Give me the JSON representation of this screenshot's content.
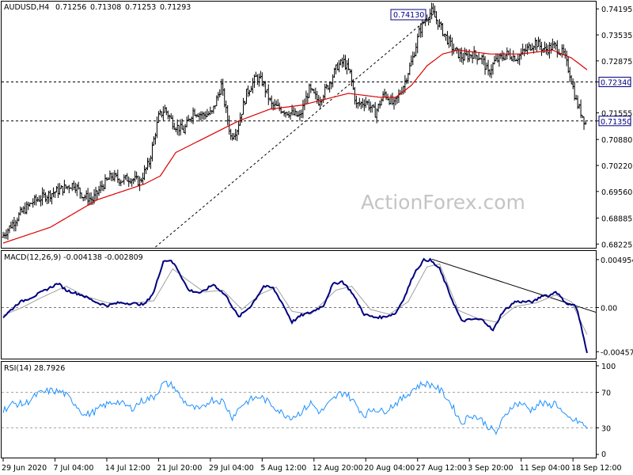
{
  "watermark": "ActionForex.com",
  "chart_data": [
    {
      "type": "ohlc",
      "title": "AUDUSD,H4",
      "ohlc_header": [
        "0.71256",
        "0.71308",
        "0.71253",
        "0.71293"
      ],
      "y_ticks": [
        "0.74195",
        "0.73535",
        "0.72875",
        "0.72340",
        "0.71555",
        "0.71350",
        "0.70880",
        "0.70220",
        "0.69560",
        "0.68885",
        "0.68225"
      ],
      "ylim": [
        0.6815,
        0.7434
      ],
      "x_tick_labels": [
        "29 Jun 2020",
        "7 Jul 04:00",
        "14 Jul 12:00",
        "21 Jul 20:00",
        "29 Jul 04:00",
        "5 Aug 12:00",
        "12 Aug 20:00",
        "20 Aug 04:00",
        "27 Aug 12:00",
        "3 Sep 20:00",
        "11 Sep 04:00",
        "18 Sep 12:00"
      ],
      "x_tick_index": [
        0,
        33,
        66,
        99,
        132,
        165,
        198,
        231,
        264,
        297,
        330,
        363
      ],
      "bar_count": 372,
      "close_anchors": [
        [
          0,
          0.684
        ],
        [
          4,
          0.686
        ],
        [
          12,
          0.69
        ],
        [
          20,
          0.693
        ],
        [
          28,
          0.6945
        ],
        [
          34,
          0.6955
        ],
        [
          40,
          0.6965
        ],
        [
          46,
          0.6975
        ],
        [
          52,
          0.6945
        ],
        [
          58,
          0.6935
        ],
        [
          64,
          0.697
        ],
        [
          70,
          0.6995
        ],
        [
          76,
          0.6985
        ],
        [
          82,
          0.699
        ],
        [
          88,
          0.698
        ],
        [
          94,
          0.703
        ],
        [
          100,
          0.7145
        ],
        [
          104,
          0.7165
        ],
        [
          110,
          0.7125
        ],
        [
          116,
          0.711
        ],
        [
          122,
          0.716
        ],
        [
          128,
          0.715
        ],
        [
          134,
          0.7155
        ],
        [
          140,
          0.7225
        ],
        [
          146,
          0.7095
        ],
        [
          150,
          0.7115
        ],
        [
          156,
          0.7205
        ],
        [
          162,
          0.7245
        ],
        [
          166,
          0.7235
        ],
        [
          172,
          0.7175
        ],
        [
          178,
          0.7165
        ],
        [
          184,
          0.7155
        ],
        [
          190,
          0.7145
        ],
        [
          196,
          0.7215
        ],
        [
          202,
          0.7185
        ],
        [
          208,
          0.7225
        ],
        [
          214,
          0.7275
        ],
        [
          218,
          0.7285
        ],
        [
          222,
          0.7255
        ],
        [
          226,
          0.7175
        ],
        [
          232,
          0.7185
        ],
        [
          238,
          0.7155
        ],
        [
          244,
          0.7205
        ],
        [
          250,
          0.7175
        ],
        [
          256,
          0.7225
        ],
        [
          262,
          0.7295
        ],
        [
          266,
          0.736
        ],
        [
          270,
          0.7395
        ],
        [
          274,
          0.7412
        ],
        [
          278,
          0.7385
        ],
        [
          282,
          0.7355
        ],
        [
          288,
          0.7315
        ],
        [
          294,
          0.7295
        ],
        [
          300,
          0.7305
        ],
        [
          306,
          0.7295
        ],
        [
          310,
          0.7255
        ],
        [
          314,
          0.7285
        ],
        [
          318,
          0.7295
        ],
        [
          322,
          0.7305
        ],
        [
          328,
          0.7295
        ],
        [
          334,
          0.7315
        ],
        [
          340,
          0.7335
        ],
        [
          346,
          0.7315
        ],
        [
          352,
          0.7325
        ],
        [
          358,
          0.7305
        ],
        [
          362,
          0.7255
        ],
        [
          366,
          0.7185
        ],
        [
          372,
          0.7129
        ]
      ],
      "moving_average": {
        "color": "#dd0000",
        "anchors": [
          [
            0,
            0.6825
          ],
          [
            30,
            0.6865
          ],
          [
            60,
            0.6935
          ],
          [
            90,
            0.6975
          ],
          [
            100,
            0.6995
          ],
          [
            110,
            0.7055
          ],
          [
            130,
            0.7095
          ],
          [
            150,
            0.7135
          ],
          [
            170,
            0.7165
          ],
          [
            190,
            0.7175
          ],
          [
            200,
            0.7185
          ],
          [
            210,
            0.7195
          ],
          [
            220,
            0.7205
          ],
          [
            240,
            0.7195
          ],
          [
            250,
            0.7195
          ],
          [
            260,
            0.7225
          ],
          [
            270,
            0.7275
          ],
          [
            280,
            0.7305
          ],
          [
            290,
            0.7315
          ],
          [
            310,
            0.7305
          ],
          [
            330,
            0.7305
          ],
          [
            350,
            0.7315
          ],
          [
            362,
            0.7295
          ],
          [
            372,
            0.7265
          ]
        ]
      },
      "horizontal_levels": [
        {
          "value": 0.7234,
          "label": "0.72340"
        },
        {
          "value": 0.7135,
          "label": "0.71350"
        }
      ],
      "trendline": {
        "from": [
          97,
          0.6815
        ],
        "to": [
          276,
          0.7413
        ]
      },
      "annotations": [
        {
          "text": "0.74130",
          "x": 276,
          "y": 0.7413
        }
      ]
    },
    {
      "type": "line",
      "title": "MACD(12,26,9) -0.004138 -0.002809",
      "y_ticks": [
        "0.004954",
        "0.00",
        "-0.004571"
      ],
      "ylim": [
        -0.0052,
        0.0056
      ],
      "macd_anchors": [
        [
          0,
          -0.001
        ],
        [
          10,
          0.0005
        ],
        [
          20,
          0.0012
        ],
        [
          35,
          0.0025
        ],
        [
          40,
          0.0018
        ],
        [
          50,
          0.0013
        ],
        [
          60,
          0.0005
        ],
        [
          66,
          0.0002
        ],
        [
          74,
          0.0005
        ],
        [
          84,
          0.0004
        ],
        [
          90,
          0.0003
        ],
        [
          96,
          0.0016
        ],
        [
          102,
          0.0048
        ],
        [
          106,
          0.0049
        ],
        [
          110,
          0.0043
        ],
        [
          118,
          0.0018
        ],
        [
          126,
          0.0015
        ],
        [
          134,
          0.0024
        ],
        [
          142,
          0.0012
        ],
        [
          150,
          -0.001
        ],
        [
          158,
          0.0002
        ],
        [
          166,
          0.0022
        ],
        [
          172,
          0.002
        ],
        [
          178,
          0.0004
        ],
        [
          184,
          -0.0015
        ],
        [
          190,
          -0.0008
        ],
        [
          196,
          -0.0005
        ],
        [
          204,
          0.0002
        ],
        [
          210,
          0.0024
        ],
        [
          216,
          0.0027
        ],
        [
          222,
          0.0016
        ],
        [
          230,
          -0.0007
        ],
        [
          236,
          -0.001
        ],
        [
          242,
          -0.001
        ],
        [
          250,
          -0.0006
        ],
        [
          256,
          0.0012
        ],
        [
          262,
          0.0036
        ],
        [
          268,
          0.0049
        ],
        [
          272,
          0.0049
        ],
        [
          278,
          0.004
        ],
        [
          286,
          0.0008
        ],
        [
          292,
          -0.0014
        ],
        [
          300,
          -0.0012
        ],
        [
          306,
          -0.0013
        ],
        [
          312,
          -0.0024
        ],
        [
          318,
          -0.0005
        ],
        [
          326,
          0.0006
        ],
        [
          332,
          0.0006
        ],
        [
          338,
          0.0006
        ],
        [
          344,
          0.0013
        ],
        [
          348,
          0.0012
        ],
        [
          352,
          0.0017
        ],
        [
          356,
          0.0009
        ],
        [
          360,
          0.0003
        ],
        [
          364,
          0.0003
        ],
        [
          366,
          -0.0005
        ],
        [
          372,
          -0.0046
        ]
      ],
      "signal_anchors": [
        [
          0,
          -0.0008
        ],
        [
          12,
          0.0
        ],
        [
          24,
          0.001
        ],
        [
          40,
          0.0022
        ],
        [
          52,
          0.0012
        ],
        [
          66,
          0.0005
        ],
        [
          80,
          0.0004
        ],
        [
          96,
          0.0007
        ],
        [
          108,
          0.004
        ],
        [
          116,
          0.003
        ],
        [
          128,
          0.0016
        ],
        [
          140,
          0.0018
        ],
        [
          152,
          -0.0002
        ],
        [
          164,
          0.0014
        ],
        [
          174,
          0.0021
        ],
        [
          184,
          -0.0004
        ],
        [
          196,
          -0.0007
        ],
        [
          212,
          0.0018
        ],
        [
          222,
          0.0022
        ],
        [
          234,
          -0.0002
        ],
        [
          246,
          -0.0007
        ],
        [
          258,
          0.0006
        ],
        [
          270,
          0.0042
        ],
        [
          278,
          0.0045
        ],
        [
          290,
          -0.0003
        ],
        [
          302,
          -0.0011
        ],
        [
          314,
          -0.0015
        ],
        [
          326,
          0.0001
        ],
        [
          340,
          0.0005
        ],
        [
          352,
          0.0013
        ],
        [
          362,
          0.0006
        ],
        [
          372,
          -0.0028
        ]
      ],
      "trendline": {
        "from": [
          273,
          0.005
        ],
        "to": [
          372,
          -0.0002
        ]
      }
    },
    {
      "type": "line",
      "title": "RSI(14) 28.7926",
      "y_ticks": [
        "100",
        "70",
        "30",
        "0"
      ],
      "ylim": [
        0,
        100
      ],
      "levels": [
        70,
        30
      ],
      "rsi_anchors": [
        [
          0,
          50
        ],
        [
          6,
          57
        ],
        [
          14,
          57
        ],
        [
          22,
          68
        ],
        [
          30,
          72
        ],
        [
          38,
          70
        ],
        [
          46,
          57
        ],
        [
          52,
          44
        ],
        [
          58,
          48
        ],
        [
          64,
          55
        ],
        [
          72,
          60
        ],
        [
          82,
          52
        ],
        [
          88,
          60
        ],
        [
          96,
          65
        ],
        [
          102,
          80
        ],
        [
          108,
          78
        ],
        [
          114,
          62
        ],
        [
          120,
          53
        ],
        [
          126,
          50
        ],
        [
          132,
          62
        ],
        [
          140,
          60
        ],
        [
          146,
          42
        ],
        [
          152,
          56
        ],
        [
          158,
          62
        ],
        [
          164,
          65
        ],
        [
          172,
          55
        ],
        [
          178,
          46
        ],
        [
          184,
          42
        ],
        [
          190,
          48
        ],
        [
          196,
          58
        ],
        [
          202,
          47
        ],
        [
          208,
          58
        ],
        [
          214,
          68
        ],
        [
          218,
          70
        ],
        [
          224,
          58
        ],
        [
          230,
          44
        ],
        [
          236,
          52
        ],
        [
          242,
          48
        ],
        [
          248,
          55
        ],
        [
          256,
          65
        ],
        [
          262,
          75
        ],
        [
          268,
          80
        ],
        [
          274,
          78
        ],
        [
          280,
          70
        ],
        [
          286,
          55
        ],
        [
          292,
          35
        ],
        [
          298,
          45
        ],
        [
          304,
          40
        ],
        [
          310,
          30
        ],
        [
          314,
          24
        ],
        [
          318,
          38
        ],
        [
          324,
          55
        ],
        [
          330,
          58
        ],
        [
          336,
          50
        ],
        [
          342,
          58
        ],
        [
          348,
          55
        ],
        [
          352,
          59
        ],
        [
          358,
          42
        ],
        [
          364,
          38
        ],
        [
          368,
          36
        ],
        [
          372,
          28.79
        ]
      ]
    }
  ]
}
